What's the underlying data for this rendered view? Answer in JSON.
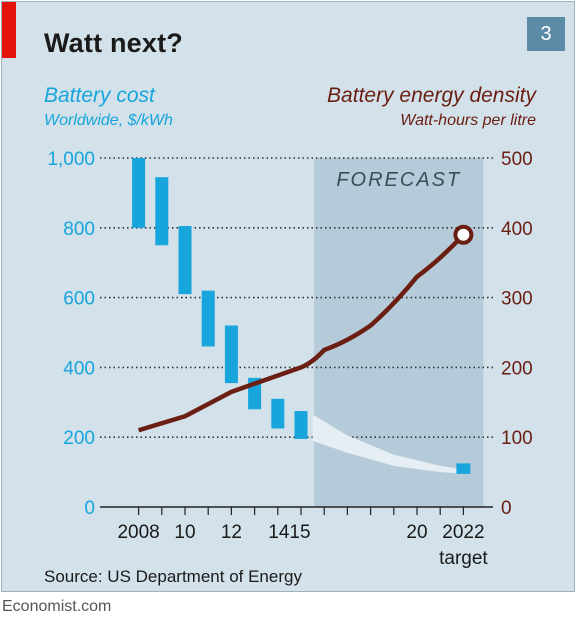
{
  "header": {
    "title": "Watt next?",
    "badge": "3",
    "left_axis_title": "Battery cost",
    "left_axis_subtitle": "Worldwide, $/kWh",
    "right_axis_title": "Battery energy density",
    "right_axis_subtitle": "Watt-hours per litre"
  },
  "footer": {
    "source": "Source: US Department of Energy",
    "credit": "Economist.com"
  },
  "colors": {
    "cost": "#17a5dc",
    "density": "#6b1e12",
    "forecast_band": "#b5cbd9",
    "background": "#d2e1ea"
  },
  "chart_data": {
    "type": "bar",
    "forecast_label": "FORECAST",
    "forecast_range": [
      2016,
      2022
    ],
    "x_range": [
      2007.5,
      2022.5
    ],
    "x_ticks": [
      2008,
      2009,
      2010,
      2011,
      2012,
      2013,
      2014,
      2015,
      2016,
      2017,
      2018,
      2019,
      2020,
      2021,
      2022
    ],
    "x_tick_labels": [
      {
        "x": 2008,
        "label": "2008"
      },
      {
        "x": 2010,
        "label": "10"
      },
      {
        "x": 2012,
        "label": "12"
      },
      {
        "x": 2014.5,
        "label": "1415"
      },
      {
        "x": 2020,
        "label": "20"
      },
      {
        "x": 2022,
        "label": "2022"
      }
    ],
    "x_extra_label": {
      "x": 2022,
      "label": "target"
    },
    "left_axis": {
      "label": "Battery cost",
      "units": "Worldwide, $/kWh",
      "ylim": [
        0,
        1000
      ],
      "ticks": [
        0,
        200,
        400,
        600,
        800,
        1000
      ],
      "tick_labels": [
        "0",
        "200",
        "400",
        "600",
        "800",
        "1,000"
      ]
    },
    "right_axis": {
      "label": "Battery energy density",
      "units": "Watt-hours per litre",
      "ylim": [
        0,
        500
      ],
      "ticks": [
        0,
        100,
        200,
        300,
        400,
        500
      ],
      "tick_labels": [
        "0",
        "100",
        "200",
        "300",
        "400",
        "500"
      ]
    },
    "cost_ranges": [
      {
        "x": 2008,
        "low": 800,
        "high": 1000
      },
      {
        "x": 2009,
        "low": 750,
        "high": 945
      },
      {
        "x": 2010,
        "low": 610,
        "high": 805
      },
      {
        "x": 2011,
        "low": 460,
        "high": 620
      },
      {
        "x": 2012,
        "low": 355,
        "high": 520
      },
      {
        "x": 2013,
        "low": 280,
        "high": 370
      },
      {
        "x": 2014,
        "low": 225,
        "high": 310
      },
      {
        "x": 2015,
        "low": 195,
        "high": 275
      },
      {
        "x": 2022,
        "low": 95,
        "high": 125
      }
    ],
    "cost_forecast_band": [
      {
        "x": 2015.5,
        "low": 190,
        "high": 265
      },
      {
        "x": 2017,
        "low": 155,
        "high": 205
      },
      {
        "x": 2019,
        "low": 118,
        "high": 150
      },
      {
        "x": 2021,
        "low": 100,
        "high": 118
      },
      {
        "x": 2022,
        "low": 96,
        "high": 108
      }
    ],
    "energy_density": [
      {
        "x": 2008,
        "y": 110
      },
      {
        "x": 2010,
        "y": 130
      },
      {
        "x": 2012,
        "y": 165
      },
      {
        "x": 2015,
        "y": 200
      },
      {
        "x": 2016,
        "y": 225
      },
      {
        "x": 2018,
        "y": 260
      },
      {
        "x": 2020,
        "y": 330
      },
      {
        "x": 2022,
        "y": 390
      }
    ],
    "target_marker": {
      "x": 2022,
      "y": 390
    }
  }
}
